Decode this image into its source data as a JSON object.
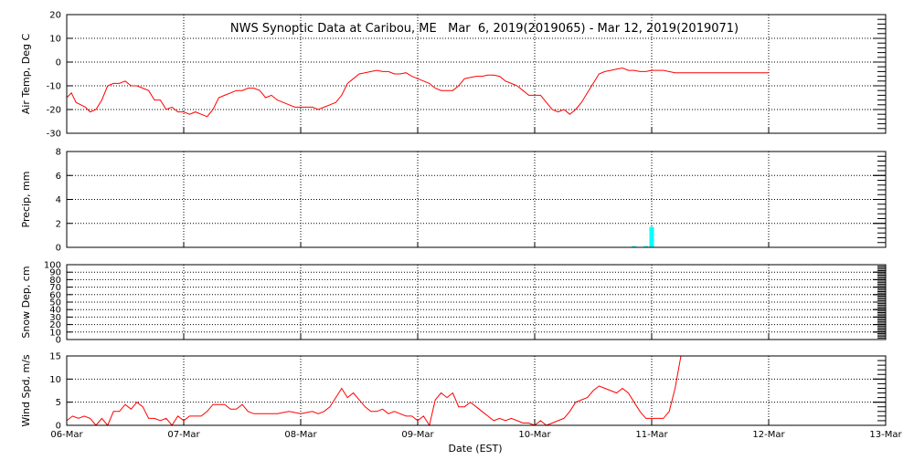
{
  "title": "NWS Synoptic Data at Caribou, ME   Mar  6, 2019(2019065) - Mar 12, 2019(2019071)",
  "x_axis": {
    "label": "Date (EST)",
    "ticks": [
      "06-Mar",
      "07-Mar",
      "08-Mar",
      "09-Mar",
      "10-Mar",
      "11-Mar",
      "12-Mar",
      "13-Mar"
    ]
  },
  "colors": {
    "line": "#ff0000",
    "precip": "#00ffff",
    "frame": "#000000"
  },
  "chart_data": [
    {
      "type": "line",
      "ylabel": "Air Temp, Deg C",
      "ylim": [
        -30,
        20
      ],
      "yticks": [
        -30,
        -20,
        -10,
        0,
        10,
        20
      ],
      "grid": true,
      "x": [
        0,
        0.04,
        0.08,
        0.12,
        0.16,
        0.2,
        0.25,
        0.3,
        0.35,
        0.4,
        0.45,
        0.5,
        0.55,
        0.6,
        0.65,
        0.7,
        0.75,
        0.8,
        0.85,
        0.9,
        0.95,
        1.0,
        1.05,
        1.1,
        1.15,
        1.2,
        1.25,
        1.3,
        1.35,
        1.4,
        1.45,
        1.5,
        1.55,
        1.6,
        1.65,
        1.7,
        1.75,
        1.8,
        1.85,
        1.9,
        1.95,
        2.0,
        2.05,
        2.1,
        2.15,
        2.2,
        2.25,
        2.3,
        2.35,
        2.4,
        2.45,
        2.5,
        2.55,
        2.6,
        2.65,
        2.7,
        2.75,
        2.8,
        2.85,
        2.9,
        2.95,
        3.0,
        3.05,
        3.1,
        3.15,
        3.2,
        3.25,
        3.3,
        3.35,
        3.4,
        3.45,
        3.5,
        3.55,
        3.6,
        3.65,
        3.7,
        3.75,
        3.8,
        3.85,
        3.9,
        3.95,
        4.0,
        4.05,
        4.1,
        4.15,
        4.2,
        4.25,
        4.3,
        4.35,
        4.4,
        4.45,
        4.5,
        4.55,
        4.6,
        4.65,
        4.7,
        4.75,
        4.8,
        4.85,
        4.9,
        4.95,
        5.0,
        5.05,
        5.1,
        5.2,
        5.4,
        5.6,
        5.8,
        6.0
      ],
      "y": [
        -15,
        -13,
        -17,
        -18,
        -19,
        -21,
        -20,
        -16,
        -10,
        -9,
        -9,
        -8,
        -10,
        -10,
        -11,
        -12,
        -16,
        -16,
        -20,
        -19,
        -21,
        -21,
        -22,
        -21,
        -22,
        -23,
        -20,
        -15,
        -14,
        -13,
        -12,
        -12,
        -11,
        -11,
        -12,
        -15,
        -14,
        -16,
        -17,
        -18,
        -19,
        -19,
        -19,
        -19,
        -20,
        -19,
        -18,
        -17,
        -14,
        -9,
        -7,
        -5,
        -4.5,
        -4,
        -3.5,
        -4,
        -4,
        -5,
        -5,
        -4.5,
        -6,
        -7,
        -8,
        -9,
        -11,
        -12,
        -12,
        -12,
        -10,
        -7,
        -6.5,
        -6,
        -6,
        -5.5,
        -5.5,
        -6,
        -8,
        -9,
        -10,
        -12,
        -14,
        -14,
        -14,
        -17,
        -20,
        -21,
        -20,
        -22,
        -20,
        -17,
        -13,
        -9,
        -5,
        -4,
        -3.5,
        -3,
        -2.5,
        -3.5,
        -3.5,
        -4,
        -4,
        -3.5,
        -3.5,
        -3.5,
        -4.5,
        -4.5,
        -4.5,
        -4.5,
        -4.5
      ]
    },
    {
      "type": "bar",
      "ylabel": "Precip, mm",
      "ylim": [
        0,
        8
      ],
      "yticks": [
        0,
        2,
        4,
        6,
        8
      ],
      "grid": true,
      "x": [
        4.85,
        4.95,
        5.0
      ],
      "values": [
        0.1,
        0.1,
        1.7
      ]
    },
    {
      "type": "line",
      "ylabel": "Snow Dep, cm",
      "ylim": [
        0,
        100
      ],
      "yticks": [
        0,
        10,
        20,
        30,
        40,
        50,
        60,
        70,
        80,
        90,
        100
      ],
      "grid": true,
      "x": [],
      "y": []
    },
    {
      "type": "line",
      "ylabel": "Wind Spd, m/s",
      "ylim": [
        0,
        15
      ],
      "yticks": [
        0,
        5,
        10,
        15
      ],
      "grid": true,
      "x": [
        0,
        0.05,
        0.1,
        0.15,
        0.2,
        0.25,
        0.3,
        0.35,
        0.4,
        0.45,
        0.5,
        0.55,
        0.6,
        0.65,
        0.7,
        0.75,
        0.8,
        0.85,
        0.9,
        0.95,
        1.0,
        1.05,
        1.1,
        1.15,
        1.2,
        1.25,
        1.3,
        1.35,
        1.4,
        1.45,
        1.5,
        1.55,
        1.6,
        1.65,
        1.7,
        1.75,
        1.8,
        1.9,
        2.0,
        2.1,
        2.15,
        2.2,
        2.25,
        2.3,
        2.35,
        2.4,
        2.45,
        2.5,
        2.55,
        2.6,
        2.65,
        2.7,
        2.75,
        2.8,
        2.85,
        2.9,
        2.95,
        3.0,
        3.05,
        3.1,
        3.15,
        3.2,
        3.25,
        3.3,
        3.35,
        3.4,
        3.45,
        3.5,
        3.55,
        3.6,
        3.65,
        3.7,
        3.75,
        3.8,
        3.85,
        3.9,
        3.95,
        4.0,
        4.05,
        4.1,
        4.15,
        4.2,
        4.25,
        4.3,
        4.35,
        4.4,
        4.45,
        4.5,
        4.55,
        4.6,
        4.65,
        4.7,
        4.75,
        4.8,
        4.85,
        4.9,
        4.95,
        5.0,
        5.05,
        5.1,
        5.15,
        5.2,
        5.25
      ],
      "y": [
        1,
        2,
        1.5,
        2,
        1.5,
        0,
        1.5,
        0,
        3,
        3,
        4.5,
        3.5,
        5,
        4,
        1.5,
        1.5,
        1,
        1.5,
        0,
        2,
        1,
        2,
        2,
        2,
        3,
        4.5,
        4.5,
        4.5,
        3.5,
        3.5,
        4.5,
        3,
        2.5,
        2.5,
        2.5,
        2.5,
        2.5,
        3,
        2.5,
        3,
        2.5,
        3,
        4,
        6,
        8,
        6,
        7,
        5.5,
        4,
        3,
        3,
        3.5,
        2.5,
        3,
        2.5,
        2,
        2,
        1,
        2,
        0,
        5.5,
        7,
        6,
        7,
        4,
        4,
        5,
        4,
        3,
        2,
        1,
        1.5,
        1,
        1.5,
        1,
        0.5,
        0.5,
        0,
        1,
        0,
        0.5,
        1,
        1.5,
        3,
        5,
        5.5,
        6,
        7.5,
        8.5,
        8,
        7.5,
        7,
        8,
        7,
        5,
        3,
        1.5,
        1.5,
        1.5,
        1.5,
        3,
        8,
        15
      ]
    }
  ]
}
